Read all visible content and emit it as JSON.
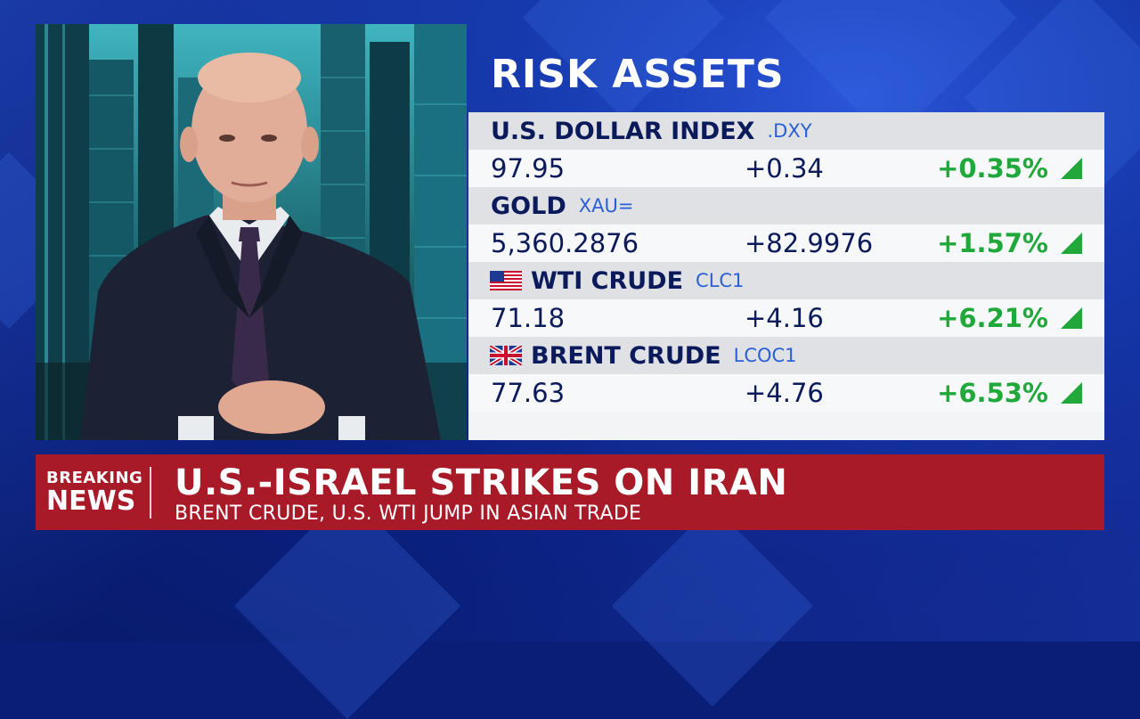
{
  "panel_title": "RISK ASSETS",
  "assets": [
    {
      "name": "U.S. DOLLAR INDEX",
      "ticker": ".DXY",
      "flag": "",
      "price": "97.95",
      "change": "+0.34",
      "pct": "+0.35%",
      "direction": "up-triangle-icon"
    },
    {
      "name": "GOLD",
      "ticker": "XAU=",
      "flag": "",
      "price": "5,360.2876",
      "change": "+82.9976",
      "pct": "+1.57%",
      "direction": "up-triangle-icon"
    },
    {
      "name": "WTI CRUDE",
      "ticker": "CLC1",
      "flag": "us-flag-icon",
      "price": "71.18",
      "change": "+4.16",
      "pct": "+6.21%",
      "direction": "up-triangle-icon"
    },
    {
      "name": "BRENT CRUDE",
      "ticker": "LCOC1",
      "flag": "uk-flag-icon",
      "price": "77.63",
      "change": "+4.76",
      "pct": "+6.53%",
      "direction": "up-triangle-icon"
    }
  ],
  "breaking": {
    "badge_line1": "BREAKING",
    "badge_line2": "NEWS",
    "headline": "U.S.-ISRAEL STRIKES ON IRAN",
    "subhead": "BRENT CRUDE, U.S. WTI JUMP IN ASIAN TRADE"
  },
  "colors": {
    "positive": "#20a83a",
    "banner": "#a81a28",
    "background": "#0b2182",
    "ticker": "#2a5fd6"
  }
}
